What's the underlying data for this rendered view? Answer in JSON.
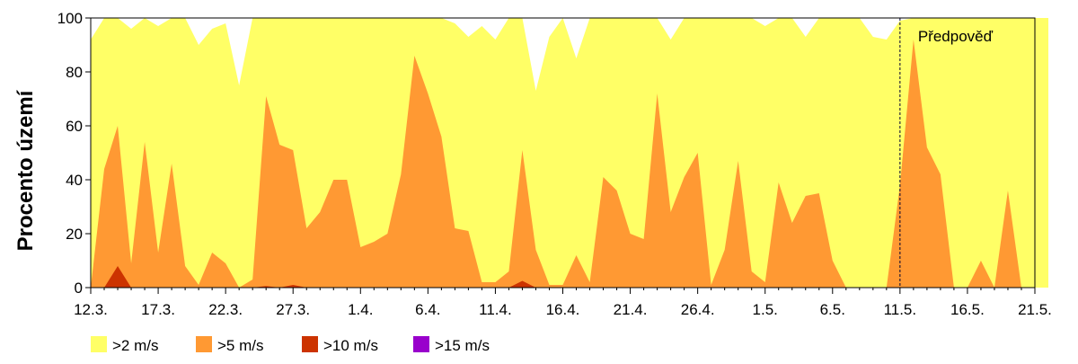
{
  "chart_data": {
    "type": "area",
    "ylabel": "Procento území",
    "xlabel": "",
    "ylim": [
      0,
      100
    ],
    "yticks": [
      0,
      20,
      40,
      60,
      80,
      100
    ],
    "x_start": "12.3.",
    "x_end": "21.5.",
    "x_step_days": 1,
    "xtick_labels": [
      "12.3.",
      "17.3.",
      "22.3.",
      "27.3.",
      "1.4.",
      "6.4.",
      "11.4.",
      "16.4.",
      "21.4.",
      "26.4.",
      "1.5.",
      "6.5.",
      "11.5.",
      "16.5.",
      "21.5."
    ],
    "grid": false,
    "legend_position": "bottom-left",
    "annotation": {
      "label": "Předpověď",
      "x": "11.5."
    },
    "forecast_shade_color": "#e8e8e8",
    "series": [
      {
        "name": ">2 m/s",
        "color": "#ffff66",
        "values": [
          92,
          100,
          100,
          96,
          100,
          97,
          100,
          100,
          90,
          96,
          98,
          75,
          100,
          100,
          100,
          100,
          100,
          100,
          100,
          100,
          100,
          100,
          100,
          100,
          100,
          100,
          100,
          98,
          93,
          97,
          92,
          100,
          100,
          73,
          93,
          100,
          85,
          100,
          100,
          100,
          100,
          100,
          100,
          92,
          100,
          100,
          100,
          100,
          100,
          100,
          97,
          100,
          100,
          93,
          100,
          100,
          100,
          100,
          93,
          92,
          99,
          100,
          100,
          100,
          100,
          100,
          100,
          100,
          100,
          100,
          100,
          100
        ]
      },
      {
        "name": ">5 m/s",
        "color": "#ff9933",
        "values": [
          0,
          44,
          60,
          9,
          54,
          13,
          46,
          8,
          1,
          13,
          9,
          0,
          3,
          71,
          53,
          51,
          22,
          28,
          40,
          40,
          15,
          17,
          20,
          42,
          86,
          72,
          56,
          22,
          21,
          2,
          2,
          6,
          51,
          14,
          1,
          1,
          12,
          2,
          41,
          36,
          20,
          18,
          72,
          28,
          41,
          50,
          1,
          14,
          47,
          6,
          2,
          39,
          24,
          34,
          35,
          10,
          0,
          0,
          0,
          0,
          38,
          92,
          52,
          42,
          0,
          0,
          10,
          0,
          36,
          0,
          0,
          0
        ]
      },
      {
        "name": ">10 m/s",
        "color": "#cc3300",
        "values": [
          0,
          0,
          8,
          0,
          0,
          0,
          0,
          0,
          0,
          0,
          0,
          0,
          0,
          0.6,
          0,
          1,
          0,
          0,
          0,
          0,
          0,
          0,
          0,
          0,
          0,
          0,
          0,
          0,
          0,
          0,
          0,
          0,
          2.5,
          0,
          0,
          0,
          0,
          0,
          0,
          0,
          0,
          0,
          0,
          0,
          0,
          0,
          0,
          0,
          0,
          0,
          0,
          0,
          0,
          0,
          0,
          0,
          0,
          0,
          0,
          0,
          0,
          0,
          0,
          0,
          0,
          0,
          0,
          0,
          0,
          0,
          0,
          0
        ]
      },
      {
        "name": ">15 m/s",
        "color": "#9900cc",
        "values": [
          0,
          0,
          0,
          0,
          0,
          0,
          0,
          0,
          0,
          0,
          0,
          0,
          0,
          0,
          0,
          0,
          0,
          0,
          0,
          0,
          0,
          0,
          0,
          0,
          0,
          0,
          0,
          0,
          0,
          0,
          0,
          0,
          0,
          0,
          0,
          0,
          0,
          0,
          0,
          0,
          0,
          0,
          0,
          0,
          0,
          0,
          0,
          0,
          0,
          0,
          0,
          0,
          0,
          0,
          0,
          0,
          0,
          0,
          0,
          0,
          0,
          0,
          0,
          0,
          0,
          0,
          0,
          0,
          0,
          0,
          0,
          0
        ]
      }
    ]
  }
}
